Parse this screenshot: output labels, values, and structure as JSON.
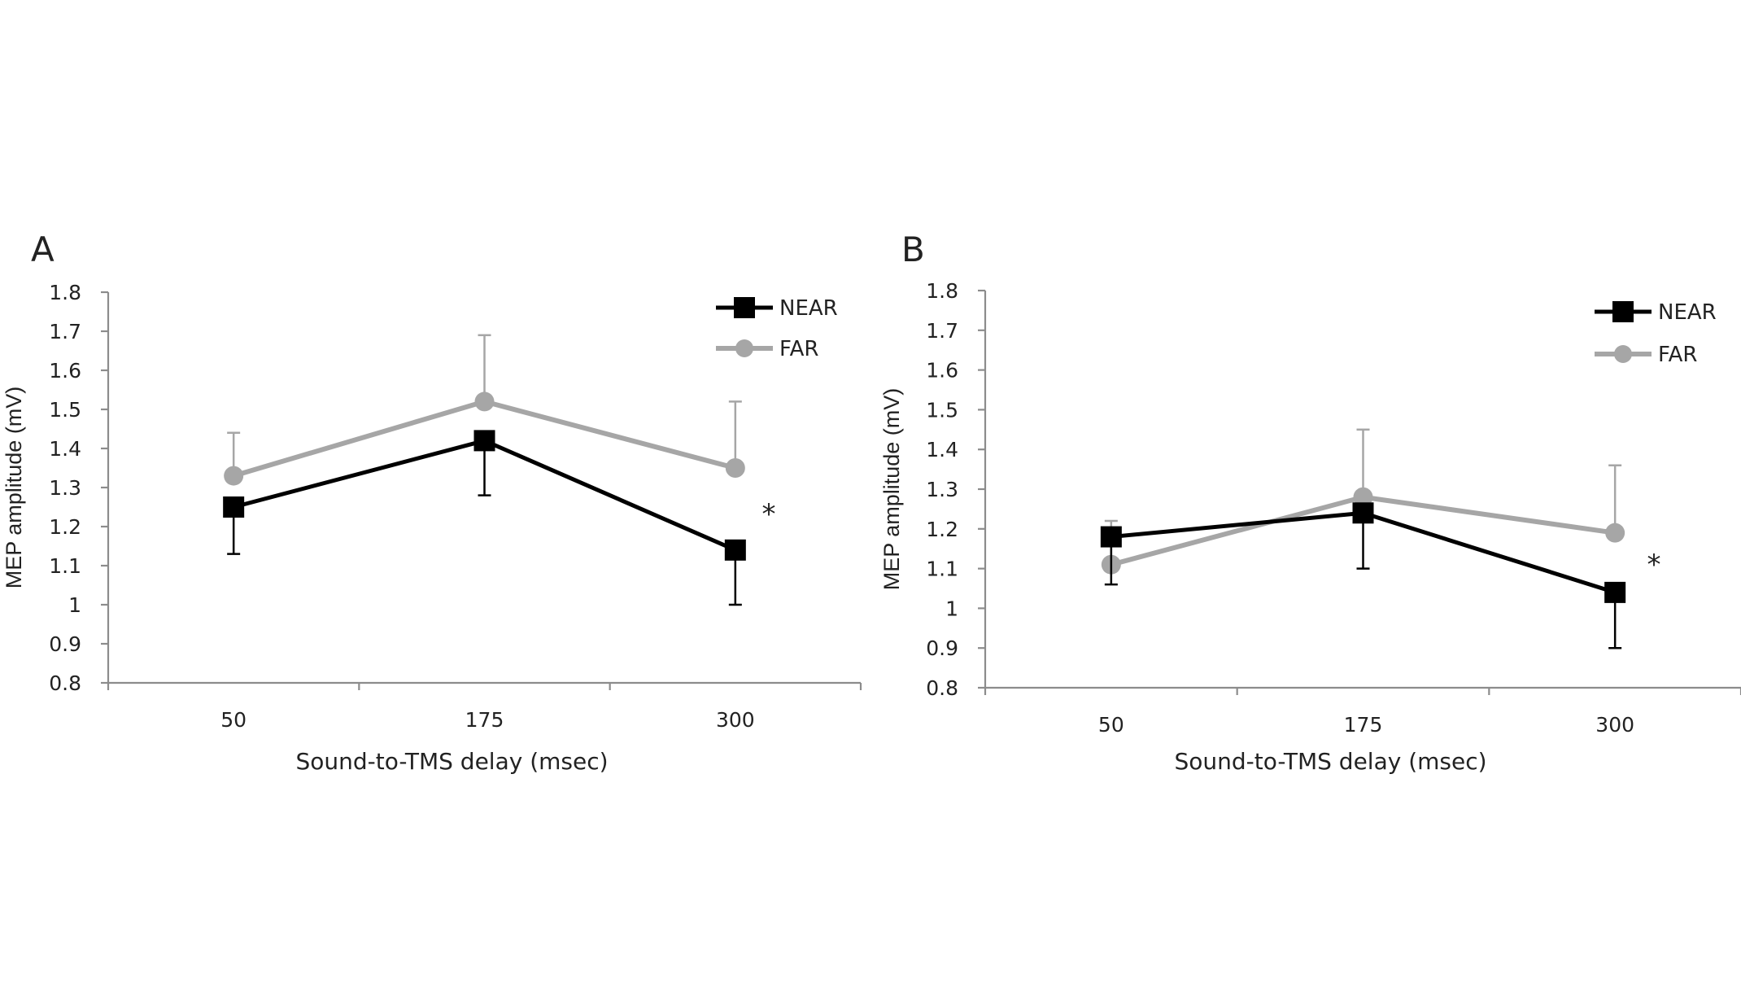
{
  "chart_data": [
    {
      "panel": "A",
      "type": "line",
      "categories": [
        "50",
        "175",
        "300"
      ],
      "series": [
        {
          "name": "NEAR",
          "values": [
            1.25,
            1.42,
            1.14
          ],
          "error_bar_low": [
            1.13,
            1.28,
            1.0
          ],
          "color": "#000000",
          "marker": "square"
        },
        {
          "name": "FAR",
          "values": [
            1.33,
            1.52,
            1.35
          ],
          "error_bar_high": [
            1.44,
            1.69,
            1.52
          ],
          "color": "#a6a6a6",
          "marker": "circle"
        }
      ],
      "xlabel": "Sound-to-TMS delay (msec)",
      "ylabel": "MEP amplitude (mV)",
      "ylim": [
        0.8,
        1.8
      ],
      "yticks": [
        "0.8",
        "0.9",
        "1",
        "1.1",
        "1.2",
        "1.3",
        "1.4",
        "1.5",
        "1.6",
        "1.7",
        "1.8"
      ],
      "grid": false,
      "legend": "top-right",
      "annotations": [
        {
          "text": "*",
          "near_category": "300"
        }
      ]
    },
    {
      "panel": "B",
      "type": "line",
      "categories": [
        "50",
        "175",
        "300"
      ],
      "series": [
        {
          "name": "NEAR",
          "values": [
            1.18,
            1.24,
            1.04
          ],
          "error_bar_low": [
            1.06,
            1.1,
            0.9
          ],
          "color": "#000000",
          "marker": "square"
        },
        {
          "name": "FAR",
          "values": [
            1.11,
            1.28,
            1.19
          ],
          "error_bar_high": [
            1.22,
            1.45,
            1.36
          ],
          "color": "#a6a6a6",
          "marker": "circle"
        }
      ],
      "xlabel": "Sound-to-TMS delay (msec)",
      "ylabel": "MEP amplitude (mV)",
      "ylim": [
        0.8,
        1.8
      ],
      "yticks": [
        "0.8",
        "0.9",
        "1",
        "1.1",
        "1.2",
        "1.3",
        "1.4",
        "1.5",
        "1.6",
        "1.7",
        "1.8"
      ],
      "grid": false,
      "legend": "top-right",
      "annotations": [
        {
          "text": "*",
          "near_category": "300"
        }
      ]
    }
  ]
}
